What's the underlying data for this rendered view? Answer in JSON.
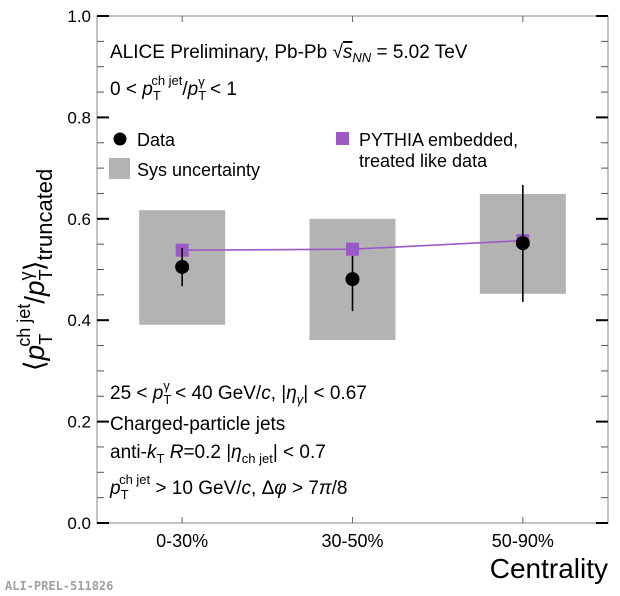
{
  "chart_data": {
    "type": "scatter",
    "title": "ALICE Preliminary, Pb-Pb √s_NN = 5.02 TeV",
    "subtitle": "0 < p_T^{ch jet}/p_T^γ < 1",
    "xlabel": "Centrality",
    "ylabel": "⟨p_T^{ch jet}/p_T^γ⟩_truncated",
    "ylim": [
      0.0,
      1.0
    ],
    "yticks": [
      "0.0",
      "0.2",
      "0.4",
      "0.6",
      "0.8",
      "1.0"
    ],
    "categories": [
      "0-30%",
      "30-50%",
      "50-90%"
    ],
    "grid": false,
    "series": [
      {
        "name": "Data",
        "marker": "circle",
        "color": "#000000",
        "values": [
          0.505,
          0.481,
          0.552
        ],
        "stat_err_low": [
          0.467,
          0.418,
          0.436
        ],
        "stat_err_high": [
          0.542,
          0.527,
          0.667
        ],
        "sys_low": [
          0.391,
          0.361,
          0.452
        ],
        "sys_high": [
          0.617,
          0.6,
          0.649
        ]
      },
      {
        "name": "PYTHIA embedded, treated like data",
        "marker": "square",
        "line": true,
        "color": "#9b59c8",
        "values": [
          0.538,
          0.54,
          0.557
        ]
      }
    ],
    "legend": {
      "placement": "top",
      "entries": [
        {
          "label": "Data",
          "marker": "circle",
          "color": "#000000"
        },
        {
          "label": "Sys uncertainty",
          "marker": "box",
          "color": "#b3b3b3"
        },
        {
          "label": "PYTHIA embedded,",
          "label2": "treated like data",
          "marker": "square",
          "color": "#9b59c8"
        }
      ]
    },
    "annotations": [
      "25 < p_T^γ < 40 GeV/c, |η_γ| < 0.67",
      "Charged-particle jets",
      "anti-k_T R=0.2 |η_ch jet| < 0.7",
      "p_T^{ch jet} > 10 GeV/c, Δφ > 7π/8"
    ],
    "watermark": "ALI-PREL-511826"
  },
  "colors": {
    "sys_box": "#b3b3b3",
    "pythia": "#9b59c8",
    "data": "#000000",
    "watermark": "#a0a0a0"
  }
}
